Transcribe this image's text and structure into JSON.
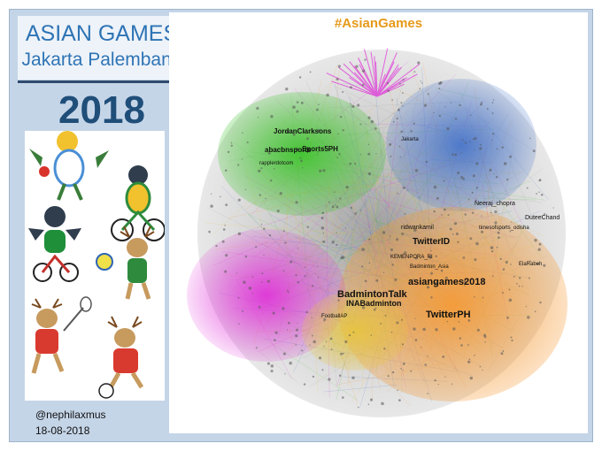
{
  "poster": {
    "title_line1": "ASIAN GAMES",
    "title_line2": "Jakarta Palembang",
    "year": "2018",
    "credit_handle": "@nephilaxmus",
    "credit_date": "18-08-2018",
    "network_title": "#AsianGames"
  },
  "colors": {
    "panel_bg": "#c5d5e8",
    "title_blue": "#2e74b5",
    "year_navy": "#1f4e79",
    "hashtag_orange": "#e69a1a",
    "cluster_green": "#3ec42c",
    "cluster_magenta": "#e02ad8",
    "cluster_orange": "#f59a35",
    "cluster_blue": "#3f6fc9",
    "cluster_grey": "#9a9a9a",
    "cluster_yellow": "#e8c53a"
  },
  "network_labels": {
    "main": [
      {
        "text": "asiangames2018"
      },
      {
        "text": "TwitterPH"
      },
      {
        "text": "BadmintonTalk"
      },
      {
        "text": "INABadminton"
      },
      {
        "text": "TwitterID"
      },
      {
        "text": "JordanClarksons"
      },
      {
        "text": "Sports5PH"
      },
      {
        "text": "abacbnsports"
      }
    ],
    "minor": [
      {
        "text": "ridwankamil"
      },
      {
        "text": "KEMENPORA_RI"
      },
      {
        "text": "DuteeChand"
      },
      {
        "text": "Neeraj_chopra"
      },
      {
        "text": "timesofsports_odisha"
      },
      {
        "text": "Jakarta"
      },
      {
        "text": "ElaRabeh"
      },
      {
        "text": "Badminton_Asia"
      },
      {
        "text": "rapplerdotcom"
      },
      {
        "text": "FootballAP"
      }
    ]
  }
}
